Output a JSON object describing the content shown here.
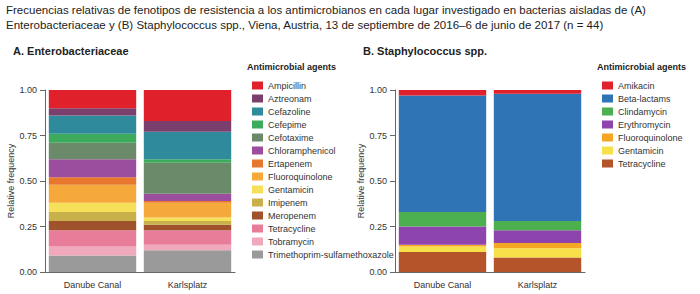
{
  "title": "Frecuencias relativas de fenotipos de resistencia a los antimicrobianos en cada lugar investigado en bacterias aisladas de (A) Enterobacteriaceae y (B) Staphylococcus spp., Viena, Austria, 13 de septiembre de 2016–6 de junio de 2017 (n = 44)",
  "chart_data": [
    {
      "type": "bar",
      "title": "A. Enterobacteriaceae",
      "categories": [
        "Danube Canal",
        "Karlsplatz"
      ],
      "ylabel": "Relative frequency",
      "legend_title": "Antimicrobial agents",
      "ylim": [
        0,
        1
      ],
      "yticks": [
        {
          "value": 0,
          "label": "0.00"
        },
        {
          "value": 0.25,
          "label": "0.25"
        },
        {
          "value": 0.5,
          "label": "0.50"
        },
        {
          "value": 0.75,
          "label": "0.75"
        },
        {
          "value": 1,
          "label": "1.00"
        }
      ],
      "stacked": true,
      "grid": false,
      "legend": "right",
      "series": [
        {
          "name": "Ampicillin",
          "color": "#e0202a",
          "values": [
            0.1,
            0.17
          ]
        },
        {
          "name": "Aztreonam",
          "color": "#7b3f6e",
          "values": [
            0.04,
            0.06
          ]
        },
        {
          "name": "Cefazoline",
          "color": "#2f8a9c",
          "values": [
            0.1,
            0.15
          ]
        },
        {
          "name": "Cefepime",
          "color": "#3daa5c",
          "values": [
            0.05,
            0.02
          ]
        },
        {
          "name": "Cefotaxime",
          "color": "#6a8a6a",
          "values": [
            0.09,
            0.17
          ]
        },
        {
          "name": "Chloramphenicol",
          "color": "#9b4e9e",
          "values": [
            0.1,
            0.04
          ]
        },
        {
          "name": "Ertapenem",
          "color": "#e8772e",
          "values": [
            0.04,
            0.01
          ]
        },
        {
          "name": "Fluoroquinolone",
          "color": "#f4a93a",
          "values": [
            0.1,
            0.08
          ]
        },
        {
          "name": "Gentamicin",
          "color": "#f6e05a",
          "values": [
            0.05,
            0.02
          ]
        },
        {
          "name": "Imipenem",
          "color": "#c8b04a",
          "values": [
            0.05,
            0.02
          ]
        },
        {
          "name": "Meropenem",
          "color": "#a0522d",
          "values": [
            0.05,
            0.03
          ]
        },
        {
          "name": "Tetracycline",
          "color": "#e87d9a",
          "values": [
            0.09,
            0.08
          ]
        },
        {
          "name": "Tobramycin",
          "color": "#f0a8bc",
          "values": [
            0.05,
            0.03
          ]
        },
        {
          "name": "Trimethoprim-sulfamethoxazole",
          "color": "#9a9a9a",
          "values": [
            0.09,
            0.12
          ]
        }
      ]
    },
    {
      "type": "bar",
      "title": "B. Staphylococcus spp.",
      "categories": [
        "Danube Canal",
        "Karlsplatz"
      ],
      "ylabel": "Relative frequency",
      "legend_title": "Antimicrobial agents",
      "ylim": [
        0,
        1
      ],
      "yticks": [
        {
          "value": 0,
          "label": "0.00"
        },
        {
          "value": 0.25,
          "label": "0.25"
        },
        {
          "value": 0.5,
          "label": "0.50"
        },
        {
          "value": 0.75,
          "label": "0.75"
        },
        {
          "value": 1,
          "label": "1.00"
        }
      ],
      "stacked": true,
      "grid": false,
      "legend": "right",
      "series": [
        {
          "name": "Amikacin",
          "color": "#e0202a",
          "values": [
            0.03,
            0.02
          ]
        },
        {
          "name": "Beta-lactams",
          "color": "#2f74b5",
          "values": [
            0.64,
            0.7
          ]
        },
        {
          "name": "Clindamycin",
          "color": "#4caf50",
          "values": [
            0.08,
            0.05
          ]
        },
        {
          "name": "Erythromycin",
          "color": "#8e44ad",
          "values": [
            0.1,
            0.07
          ]
        },
        {
          "name": "Fluoroquinolone",
          "color": "#f5a623",
          "values": [
            0.01,
            0.03
          ]
        },
        {
          "name": "Gentamicin",
          "color": "#f7e14a",
          "values": [
            0.03,
            0.05
          ]
        },
        {
          "name": "Tetracycline",
          "color": "#b5532a",
          "values": [
            0.11,
            0.08
          ]
        }
      ]
    }
  ]
}
